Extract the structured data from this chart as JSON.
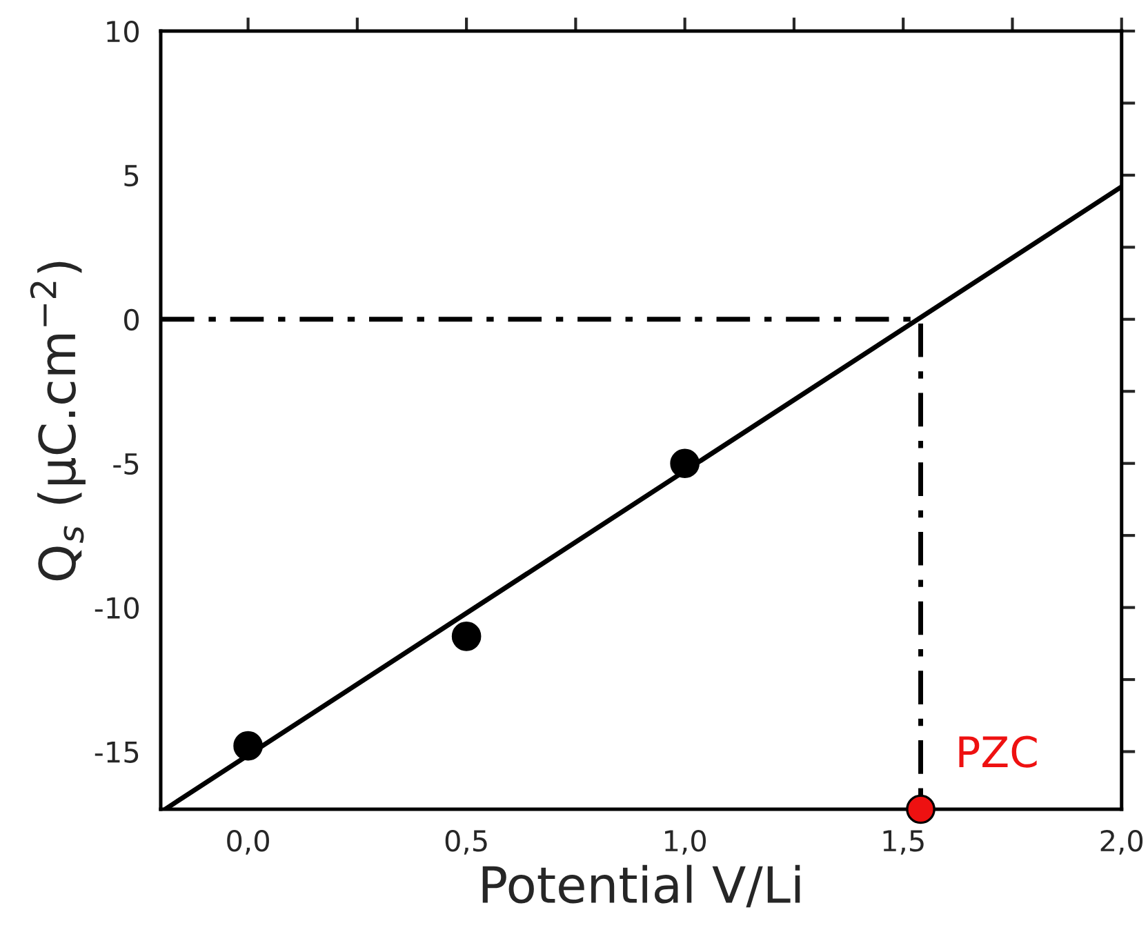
{
  "chart_data": {
    "type": "scatter",
    "xlabel": "Potential V/Li",
    "ylabel": "Q$_{s}$ (µC.cm$^{−2}$)",
    "xlim": [
      -0.2,
      2.0
    ],
    "ylim": [
      -17,
      10
    ],
    "xticks": [
      {
        "value": 0,
        "label": "0,0"
      },
      {
        "value": 0.25,
        "label": null
      },
      {
        "value": 0.5,
        "label": "0,5"
      },
      {
        "value": 0.75,
        "label": null
      },
      {
        "value": 1.0,
        "label": "1,0"
      },
      {
        "value": 1.25,
        "label": null
      },
      {
        "value": 1.5,
        "label": "1,5"
      },
      {
        "value": 1.75,
        "label": null
      },
      {
        "value": 2.0,
        "label": "2,0"
      }
    ],
    "yticks": [
      -15,
      {
        "value": -12.5,
        "label": null
      },
      -10,
      {
        "value": -7.5,
        "label": null
      },
      -5,
      {
        "value": -2.5,
        "label": null
      },
      0,
      {
        "value": 2.5,
        "label": null
      },
      5,
      {
        "value": 7.5,
        "label": null
      },
      10
    ],
    "grid": false,
    "marker": "circle",
    "series": [
      {
        "color": "#000000",
        "x": [
          0.0,
          0.5,
          1.0
        ],
        "values": [
          -14.8,
          -11.0,
          -5.0
        ]
      },
      {
        "type": "line",
        "color": "#000000",
        "line_style": "solid",
        "marker": "none",
        "x": [
          -0.19,
          2.0
        ],
        "values": [
          -17,
          4.6
        ]
      },
      {
        "type": "line",
        "color": "#000000",
        "line_style": "dashdot",
        "marker": "none",
        "x": [
          -0.2,
          1.54,
          1.54
        ],
        "values": [
          0,
          0,
          -17
        ]
      },
      {
        "color": "#ee1111",
        "x": [
          1.54
        ],
        "values": [
          -17
        ]
      }
    ],
    "annotations": [
      {
        "text": "PZC",
        "x": 1.54,
        "y": -17
      }
    ]
  }
}
